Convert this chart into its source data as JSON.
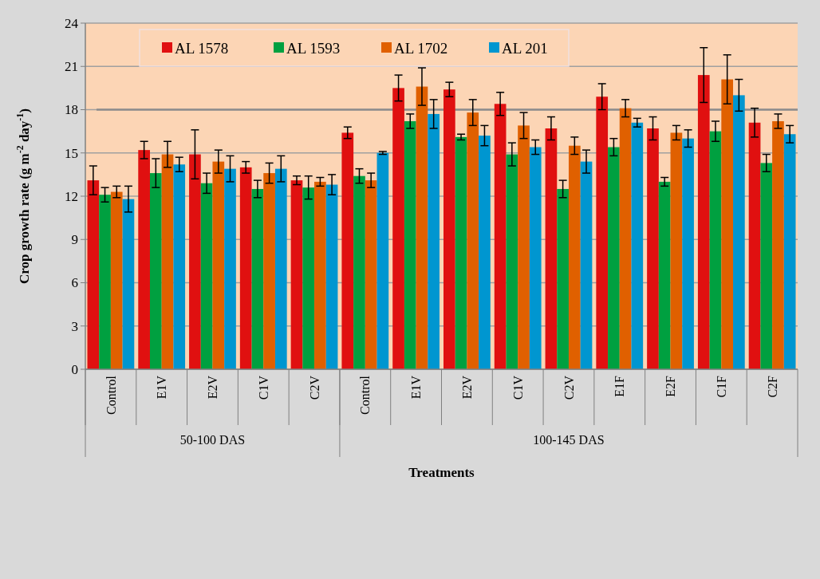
{
  "chart_data": {
    "type": "bar",
    "xlabel": "Treatments",
    "ylabel": "Crop growth rate (g m$^{-2}$ day$^{-1}$)",
    "categories": [
      "Control",
      "E1V",
      "E2V",
      "C1V",
      "C2V",
      "Control",
      "E1V",
      "E2V",
      "C1V",
      "C2V",
      "E1F",
      "E2F",
      "C1F",
      "C2F"
    ],
    "annotations": [
      "50-100 DAS",
      "100-145 DAS"
    ],
    "series": [
      {
        "name": "AL 1578",
        "color": "#e01010",
        "values": [
          13.1,
          15.2,
          14.9,
          14.0,
          13.1,
          16.4,
          19.5,
          19.4,
          18.4,
          16.7,
          18.9,
          16.7,
          20.4,
          17.1
        ],
        "errors": [
          1.0,
          0.6,
          1.7,
          0.4,
          0.3,
          0.4,
          0.9,
          0.5,
          0.8,
          0.8,
          0.9,
          0.8,
          1.9,
          1.0
        ]
      },
      {
        "name": "AL 1593",
        "color": "#00a040",
        "values": [
          12.1,
          13.6,
          12.9,
          12.5,
          12.6,
          13.4,
          17.2,
          16.1,
          14.9,
          12.5,
          15.4,
          13.0,
          16.5,
          14.3
        ],
        "errors": [
          0.5,
          1.0,
          0.7,
          0.6,
          0.8,
          0.5,
          0.5,
          0.2,
          0.8,
          0.6,
          0.6,
          0.3,
          0.7,
          0.6
        ]
      },
      {
        "name": "AL 1702",
        "color": "#e06000",
        "values": [
          12.3,
          14.9,
          14.4,
          13.6,
          13.0,
          13.1,
          19.6,
          17.8,
          16.9,
          15.5,
          18.1,
          16.4,
          20.1,
          17.2
        ],
        "errors": [
          0.4,
          0.9,
          0.8,
          0.7,
          0.3,
          0.5,
          1.3,
          0.9,
          0.9,
          0.6,
          0.6,
          0.5,
          1.7,
          0.5
        ]
      },
      {
        "name": "AL 201",
        "color": "#0096d0",
        "values": [
          11.8,
          14.2,
          13.9,
          13.9,
          12.8,
          15.0,
          17.7,
          16.2,
          15.4,
          14.4,
          17.1,
          16.0,
          19.0,
          16.3
        ],
        "errors": [
          0.9,
          0.5,
          0.9,
          0.9,
          0.7,
          0.1,
          1.0,
          0.7,
          0.5,
          0.8,
          0.3,
          0.6,
          1.1,
          0.6
        ]
      }
    ],
    "ylim": [
      0,
      24
    ],
    "yticks": [
      0,
      3,
      6,
      9,
      12,
      15,
      18,
      21,
      24
    ],
    "grid": "y",
    "legend": "top",
    "ref_lines": [
      {
        "axis": "y",
        "value": 18,
        "color": "#8c8c8c"
      }
    ]
  }
}
